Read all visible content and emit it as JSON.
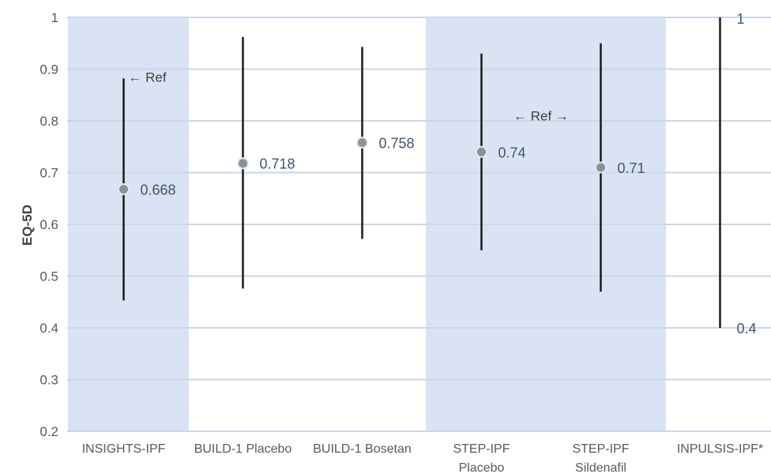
{
  "chart_data": {
    "type": "scatter",
    "ylabel": "EQ-5D",
    "ylim": [
      0.2,
      1
    ],
    "yticks": [
      "0.2",
      "0.3",
      "0.4",
      "0.5",
      "0.6",
      "0.7",
      "0.8",
      "0.9",
      "1"
    ],
    "grid": true,
    "categories": [
      {
        "label": [
          "INSIGHTS-IPF"
        ],
        "point": 0.668,
        "point_label": "0.668",
        "low": 0.453,
        "high": 0.882,
        "shaded": true
      },
      {
        "label": [
          "BUILD-1 Placebo"
        ],
        "point": 0.718,
        "point_label": "0.718",
        "low": 0.476,
        "high": 0.962,
        "shaded": false
      },
      {
        "label": [
          "BUILD-1 Bosetan"
        ],
        "point": 0.758,
        "point_label": "0.758",
        "low": 0.572,
        "high": 0.943,
        "shaded": false
      },
      {
        "label": [
          "STEP-IPF",
          "Placebo"
        ],
        "point": 0.74,
        "point_label": "0.74",
        "low": 0.55,
        "high": 0.93,
        "shaded": true
      },
      {
        "label": [
          "STEP-IPF",
          "Sildenafil"
        ],
        "point": 0.71,
        "point_label": "0.71",
        "low": 0.47,
        "high": 0.95,
        "shaded": true
      },
      {
        "label": [
          "INPULSIS-IPF*"
        ],
        "point": null,
        "low": 0.4,
        "high": 1.0,
        "low_label": "0.4",
        "high_label": "1",
        "shaded": false
      }
    ],
    "annotations": [
      {
        "text": "← Ref",
        "category_index": 0,
        "y": 0.885
      },
      {
        "text": "← Ref →",
        "between": [
          3,
          4
        ],
        "y": 0.81
      }
    ],
    "colors": {
      "shade": "#dae3f3",
      "grid": "#c9d7ea",
      "whisker": "#1a1a1a",
      "point": "#8c9199",
      "label": "#44546a"
    }
  }
}
